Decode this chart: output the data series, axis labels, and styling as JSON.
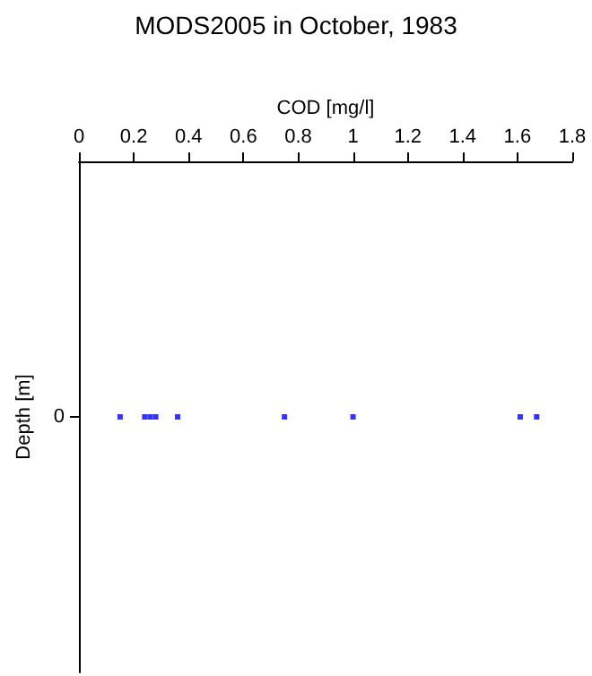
{
  "chart_data": {
    "type": "scatter",
    "orientation": "horizontal",
    "title": "MODS2005 in October, 1983",
    "xlabel": "COD [mg/l]",
    "ylabel": "Depth [m]",
    "categories": [
      "0"
    ],
    "series": [
      {
        "color": "#0000ff",
        "x": [
          "0",
          "0",
          "0",
          "0",
          "0",
          "0",
          "0",
          "0",
          "0"
        ],
        "values": [
          0.15,
          0.24,
          0.26,
          0.28,
          0.36,
          0.75,
          1.0,
          1.61,
          1.67
        ]
      }
    ],
    "xlim": [
      0,
      1.8
    ],
    "xticks": [
      0,
      0.2,
      0.4,
      0.6,
      0.8,
      1,
      1.2,
      1.4,
      1.6,
      1.8
    ],
    "grid": false,
    "marker": "square"
  }
}
